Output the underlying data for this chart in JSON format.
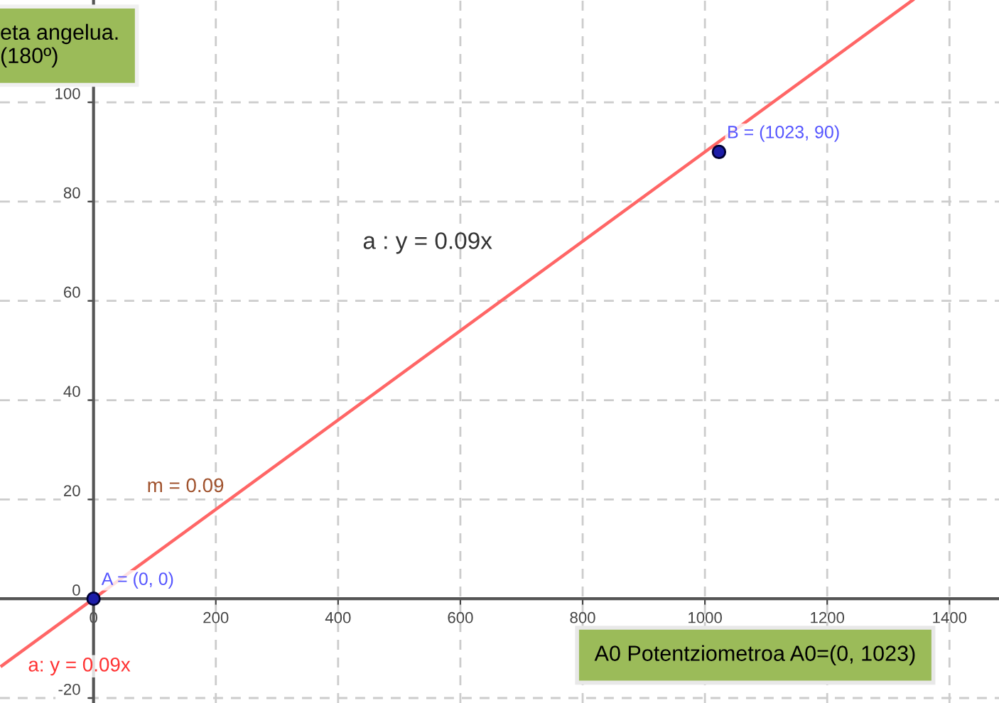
{
  "chart_data": {
    "type": "line",
    "title": "eta angelua.\n(180º)",
    "series": [
      {
        "color": "#ff6666",
        "x": [
          -150,
          1340
        ],
        "values": [
          -13.5,
          120.6
        ]
      },
      {
        "type": "scatter",
        "color": "#1c1ca8",
        "x": [
          0,
          1023
        ],
        "values": [
          0,
          90
        ],
        "marker": "circle"
      }
    ],
    "xlim": [
      -153,
      1481
    ],
    "ylim": [
      -21,
      120.6
    ],
    "xticks": [
      0,
      200,
      400,
      600,
      800,
      1000,
      1200,
      1400
    ],
    "yticks": [
      -20,
      0,
      20,
      40,
      60,
      80,
      100
    ],
    "grid": true,
    "annotations": [
      {
        "text": "A = (0, 0)",
        "x": 0,
        "y": 0
      },
      {
        "text": "B = (1023, 90)",
        "x": 1023,
        "y": 90
      },
      "a : y = 0.09x",
      "m = 0.09",
      "a: y = 0.09x",
      "A0 Potentziometroa A0=(0, 1023)"
    ]
  }
}
